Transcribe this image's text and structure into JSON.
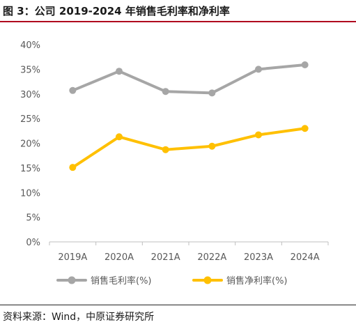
{
  "header": {
    "title": "图 3：公司 2019-2024 年销售毛利率和净利率"
  },
  "footer": {
    "source": "资料来源：Wind，中原证券研究所"
  },
  "chart_data": {
    "type": "line",
    "title": "",
    "xlabel": "",
    "ylabel": "",
    "categories": [
      "2019A",
      "2020A",
      "2021A",
      "2022A",
      "2023A",
      "2024A"
    ],
    "ylim": [
      0,
      40
    ],
    "yticks": [
      0,
      5,
      10,
      15,
      20,
      25,
      30,
      35,
      40
    ],
    "ytick_labels": [
      "0%",
      "5%",
      "10%",
      "15%",
      "20%",
      "25%",
      "30%",
      "35%",
      "40%"
    ],
    "grid": false,
    "legend_position": "bottom",
    "series": [
      {
        "name": "销售毛利率(%)",
        "color": "#a6a6a6",
        "values": [
          30.7,
          34.6,
          30.5,
          30.2,
          35.0,
          35.9
        ]
      },
      {
        "name": "销售净利率(%)",
        "color": "#ffc000",
        "values": [
          15.1,
          21.3,
          18.7,
          19.4,
          21.7,
          23.0
        ]
      }
    ]
  }
}
